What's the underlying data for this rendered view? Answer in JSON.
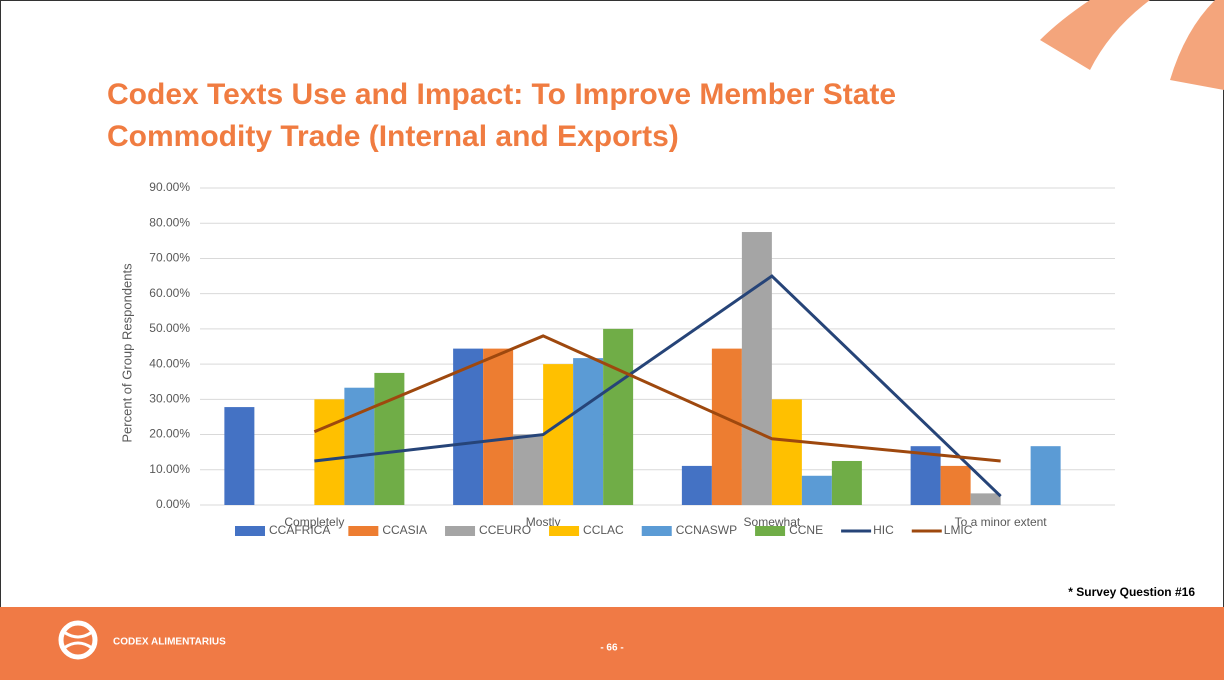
{
  "chart_data": {
    "type": "bar",
    "title": "Codex Texts Use and Impact: To Improve Member State Commodity Trade (Internal and Exports)",
    "y_label": "Percent of Group Respondents",
    "categories": [
      "Completely",
      "Mostly",
      "Somewhat",
      "To a minor extent"
    ],
    "series": [
      {
        "name": "CCAFRICA",
        "type": "bar",
        "color": "#4472c4",
        "values": [
          27.8,
          44.4,
          11.1,
          16.7
        ]
      },
      {
        "name": "CCASIA",
        "type": "bar",
        "color": "#ed7d31",
        "values": [
          0,
          44.4,
          44.4,
          11.1
        ]
      },
      {
        "name": "CCEURO",
        "type": "bar",
        "color": "#a5a5a5",
        "values": [
          0,
          20,
          77.5,
          3.3
        ]
      },
      {
        "name": "CCLAC",
        "type": "bar",
        "color": "#ffc000",
        "values": [
          30,
          40,
          30,
          0
        ]
      },
      {
        "name": "CCNASWP",
        "type": "bar",
        "color": "#5b9bd5",
        "values": [
          33.3,
          41.7,
          8.3,
          16.7
        ]
      },
      {
        "name": "CCNE",
        "type": "bar",
        "color": "#70ad47",
        "values": [
          37.5,
          50,
          12.5,
          0
        ]
      },
      {
        "name": "HIC",
        "type": "line",
        "color": "#264478",
        "values": [
          12.5,
          20,
          65,
          2.5
        ]
      },
      {
        "name": "LMIC",
        "type": "line",
        "color": "#9e480e",
        "values": [
          20.8,
          48,
          18.8,
          12.5
        ]
      }
    ],
    "ylim": [
      0,
      90
    ],
    "yticks": [
      {
        "value": 0,
        "label": "0.00%"
      },
      {
        "value": 10,
        "label": "10.00%"
      },
      {
        "value": 20,
        "label": "20.00%"
      },
      {
        "value": 30,
        "label": "30.00%"
      },
      {
        "value": 40,
        "label": "40.00%"
      },
      {
        "value": 50,
        "label": "50.00%"
      },
      {
        "value": 60,
        "label": "60.00%"
      },
      {
        "value": 70,
        "label": "70.00%"
      },
      {
        "value": 80,
        "label": "80.00%"
      },
      {
        "value": 90,
        "label": "90.00%"
      }
    ],
    "grid": true,
    "legend": "bottom"
  },
  "note": "* Survey Question #16",
  "footer": {
    "brand": "CODEX ALIMENTARIUS",
    "page": "- 66 -"
  }
}
